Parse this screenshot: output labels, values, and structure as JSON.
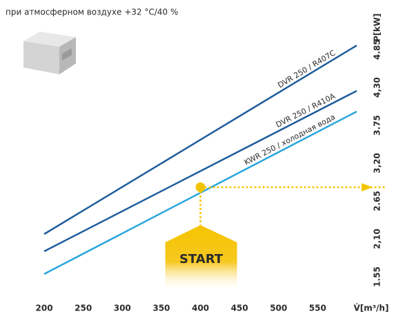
{
  "chart_data": {
    "type": "line",
    "title": "при атмосферном воздухе +32 °C/40 %",
    "x_label": "V̇[m³/h]",
    "y_label": "P[kW]",
    "x": [
      200,
      600
    ],
    "series": [
      {
        "name": "DVR 250 / R407C",
        "color": "#1d5c9c",
        "values": [
          2.17,
          4.91
        ]
      },
      {
        "name": "DVR 250 / R410A",
        "color": "#1d5c9c",
        "values": [
          1.92,
          4.25
        ]
      },
      {
        "name": "KWR 250 / холодная вода",
        "color": "#27a5dd",
        "values": [
          1.59,
          3.95
        ]
      }
    ],
    "annotation": {
      "text": "START",
      "x": 400,
      "y": 2.85,
      "color": "#f5c400"
    },
    "xlim": [
      180,
      620
    ],
    "ylim": [
      1.22,
      5.37
    ],
    "xticks": [
      200,
      250,
      300,
      350,
      400,
      450,
      500,
      550
    ],
    "yticks": [
      1.55,
      {
        "value": 2.1,
        "label": "2,10"
      },
      2.65,
      {
        "value": 3.2,
        "label": "3,20"
      },
      3.75,
      {
        "value": 4.3,
        "label": "4,30"
      },
      4.85
    ],
    "grid": false
  }
}
